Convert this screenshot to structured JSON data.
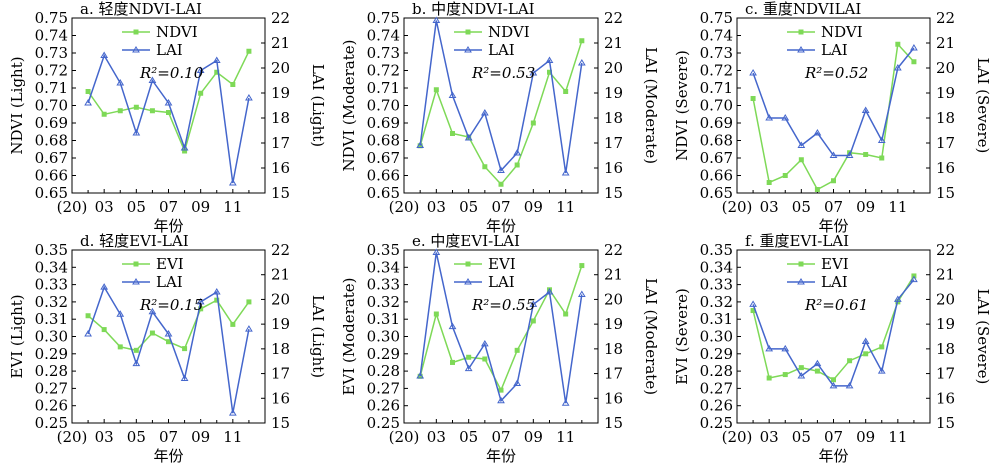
{
  "xlabel": "年份",
  "x": [
    2002,
    2003,
    2004,
    2005,
    2006,
    2007,
    2008,
    2009,
    2010,
    2011,
    2012
  ],
  "xticks": [
    "(20)",
    "03",
    "05",
    "07",
    "09",
    "11"
  ],
  "colors": {
    "green": "#7ed957",
    "blue": "#4466cc"
  },
  "chart_data": [
    {
      "type": "line",
      "title": "a. 轻度NDVI-LAI",
      "ylabel": "NDVI (Light)",
      "y2label": "LAI (Light)",
      "ylim": [
        0.65,
        0.75
      ],
      "y2lim": [
        15,
        22
      ],
      "yticks": [
        "0.75",
        "0.74",
        "0.73",
        "0.72",
        "0.71",
        "0.70",
        "0.69",
        "0.68",
        "0.67",
        "0.66",
        "0.65"
      ],
      "y2ticks": [
        "22",
        "21",
        "20",
        "19",
        "18",
        "17",
        "16",
        "15"
      ],
      "legend": [
        "NDVI",
        "LAI"
      ],
      "r2_label": "R²=0.10",
      "series": [
        {
          "name": "NDVI",
          "axis": "left",
          "values": [
            0.708,
            0.695,
            0.697,
            0.699,
            0.697,
            0.696,
            0.674,
            0.707,
            0.719,
            0.712,
            0.731
          ]
        },
        {
          "name": "LAI",
          "axis": "right",
          "values": [
            18.6,
            20.5,
            19.4,
            17.4,
            19.5,
            18.6,
            16.8,
            19.9,
            20.3,
            15.4,
            18.8
          ]
        }
      ]
    },
    {
      "type": "line",
      "title": "b. 中度NDVI-LAI",
      "ylabel": "NDVI (Moderate)",
      "y2label": "LAI (Moderate)",
      "ylim": [
        0.65,
        0.75
      ],
      "y2lim": [
        15,
        22
      ],
      "yticks": [
        "0.75",
        "0.74",
        "0.73",
        "0.72",
        "0.71",
        "0.70",
        "0.69",
        "0.68",
        "0.67",
        "0.66",
        "0.65"
      ],
      "y2ticks": [
        "22",
        "21",
        "20",
        "19",
        "18",
        "17",
        "16",
        "15"
      ],
      "legend": [
        "NDVI",
        "LAI"
      ],
      "r2_label": "R²=0.53",
      "series": [
        {
          "name": "NDVI",
          "axis": "left",
          "values": [
            0.677,
            0.709,
            0.684,
            0.682,
            0.665,
            0.655,
            0.666,
            0.69,
            0.719,
            0.708,
            0.737
          ]
        },
        {
          "name": "LAI",
          "axis": "right",
          "values": [
            16.9,
            21.9,
            18.9,
            17.2,
            18.2,
            15.9,
            16.6,
            19.8,
            20.3,
            15.8,
            20.2
          ]
        }
      ]
    },
    {
      "type": "line",
      "title": "c. 重度NDVILAI",
      "ylabel": "NDVI (Severe)",
      "y2label": "LAI (Severe)",
      "ylim": [
        0.65,
        0.75
      ],
      "y2lim": [
        15,
        22
      ],
      "yticks": [
        "0.75",
        "0.74",
        "0.73",
        "0.72",
        "0.71",
        "0.70",
        "0.69",
        "0.68",
        "0.67",
        "0.66",
        "0.65"
      ],
      "y2ticks": [
        "22",
        "21",
        "20",
        "19",
        "18",
        "17",
        "16",
        "15"
      ],
      "legend": [
        "NDVI",
        "LAI"
      ],
      "r2_label": "R²=0.52",
      "series": [
        {
          "name": "NDVI",
          "axis": "left",
          "values": [
            0.704,
            0.656,
            0.66,
            0.669,
            0.652,
            0.657,
            0.673,
            0.672,
            0.67,
            0.735,
            0.725
          ]
        },
        {
          "name": "LAI",
          "axis": "right",
          "values": [
            19.8,
            18.0,
            18.0,
            16.9,
            17.4,
            16.5,
            16.5,
            18.3,
            17.1,
            20.0,
            20.8
          ]
        }
      ]
    },
    {
      "type": "line",
      "title": "d. 轻度EVI-LAI",
      "ylabel": "EVI (Light)",
      "y2label": "LAI (Light)",
      "ylim": [
        0.25,
        0.35
      ],
      "y2lim": [
        15,
        22
      ],
      "yticks": [
        "0.35",
        "0.34",
        "0.33",
        "0.32",
        "0.31",
        "0.30",
        "0.29",
        "0.28",
        "0.27",
        "0.26",
        "0.25"
      ],
      "y2ticks": [
        "22",
        "21",
        "20",
        "19",
        "18",
        "17",
        "16",
        "15"
      ],
      "legend": [
        "EVI",
        "LAI"
      ],
      "r2_label": "R²=0.15",
      "series": [
        {
          "name": "EVI",
          "axis": "left",
          "values": [
            0.312,
            0.304,
            0.294,
            0.292,
            0.302,
            0.297,
            0.293,
            0.316,
            0.321,
            0.307,
            0.32
          ]
        },
        {
          "name": "LAI",
          "axis": "right",
          "values": [
            18.6,
            20.5,
            19.4,
            17.4,
            19.5,
            18.6,
            16.8,
            19.9,
            20.3,
            15.4,
            18.8
          ]
        }
      ]
    },
    {
      "type": "line",
      "title": "e. 中度EVI-LAI",
      "ylabel": "EVI (Moderate)",
      "y2label": "LAI (Moderate)",
      "ylim": [
        0.25,
        0.35
      ],
      "y2lim": [
        15,
        22
      ],
      "yticks": [
        "0.35",
        "0.34",
        "0.33",
        "0.32",
        "0.31",
        "0.30",
        "0.29",
        "0.28",
        "0.27",
        "0.26",
        "0.25"
      ],
      "y2ticks": [
        "22",
        "21",
        "20",
        "19",
        "18",
        "17",
        "16",
        "15"
      ],
      "legend": [
        "EVI",
        "LAI"
      ],
      "r2_label": "R²=0.55",
      "series": [
        {
          "name": "EVI",
          "axis": "left",
          "values": [
            0.277,
            0.313,
            0.285,
            0.288,
            0.287,
            0.269,
            0.292,
            0.309,
            0.327,
            0.313,
            0.341
          ]
        },
        {
          "name": "LAI",
          "axis": "right",
          "values": [
            16.9,
            21.9,
            18.9,
            17.2,
            18.2,
            15.9,
            16.6,
            19.8,
            20.3,
            15.8,
            20.2
          ]
        }
      ]
    },
    {
      "type": "line",
      "title": "f. 重度EVI-LAI",
      "ylabel": "EVI (Severe)",
      "y2label": "LAI (Severe)",
      "ylim": [
        0.25,
        0.35
      ],
      "y2lim": [
        15,
        22
      ],
      "yticks": [
        "0.35",
        "0.34",
        "0.33",
        "0.32",
        "0.31",
        "0.30",
        "0.29",
        "0.28",
        "0.27",
        "0.26",
        "0.25"
      ],
      "y2ticks": [
        "22",
        "21",
        "20",
        "19",
        "18",
        "17",
        "16",
        "15"
      ],
      "legend": [
        "EVI",
        "LAI"
      ],
      "r2_label": "R²=0.61",
      "series": [
        {
          "name": "EVI",
          "axis": "left",
          "values": [
            0.315,
            0.276,
            0.278,
            0.282,
            0.28,
            0.275,
            0.286,
            0.29,
            0.294,
            0.32,
            0.335
          ]
        },
        {
          "name": "LAI",
          "axis": "right",
          "values": [
            19.8,
            18.0,
            18.0,
            16.9,
            17.4,
            16.5,
            16.5,
            18.3,
            17.1,
            20.0,
            20.8
          ]
        }
      ]
    }
  ]
}
